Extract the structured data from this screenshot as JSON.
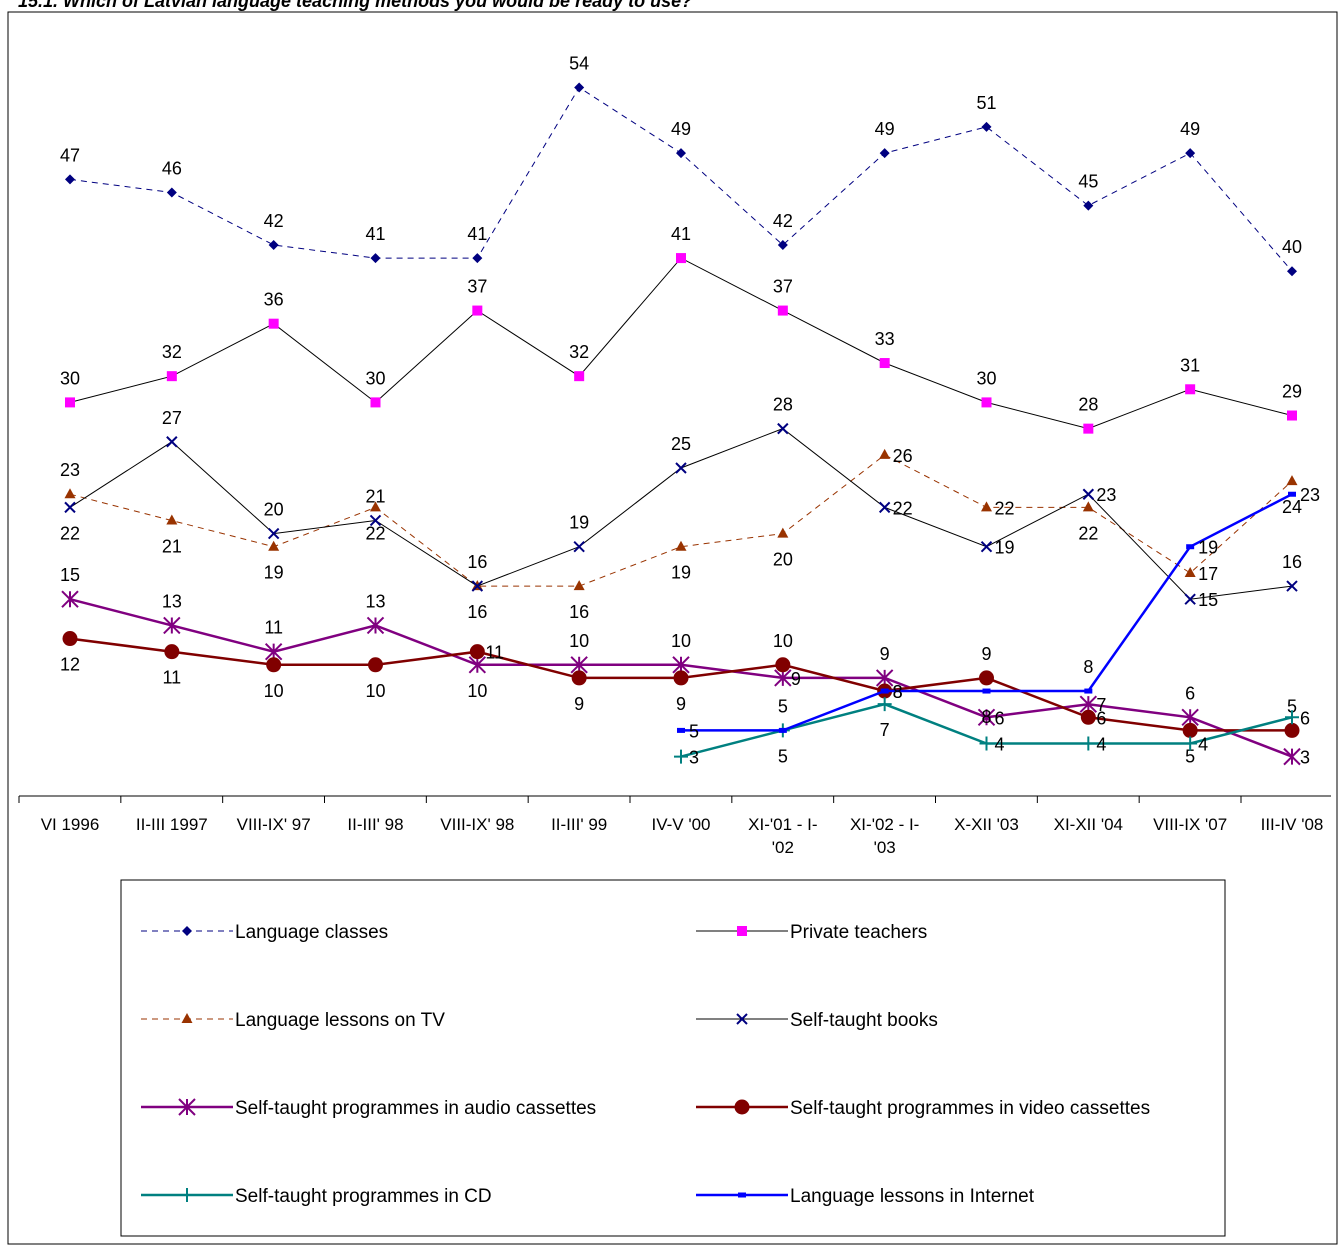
{
  "title": "15.1. Which of Latvian language teaching methods you would be ready to use?",
  "chart_data": {
    "type": "line",
    "title": "15.1. Which of Latvian language teaching methods you would be ready to use?",
    "categories": [
      [
        "VI 1996"
      ],
      [
        "II-III 1997"
      ],
      [
        "VIII-IX' 97"
      ],
      [
        "II-III' 98"
      ],
      [
        "VIII-IX' 98"
      ],
      [
        "II-III' 99"
      ],
      [
        "IV-V '00"
      ],
      [
        "XI-'01 - I-",
        "'02"
      ],
      [
        "XI-'02 - I-",
        "'03"
      ],
      [
        "X-XII '03"
      ],
      [
        "XI-XII '04"
      ],
      [
        "VIII-IX '07"
      ],
      [
        "III-IV '08"
      ]
    ],
    "ylim": [
      0,
      60
    ],
    "grid": false,
    "legend_position": "bottom",
    "series": [
      {
        "name": "Language classes",
        "color": "#000080",
        "marker": "diamond",
        "dash": true,
        "line_color": "#000080",
        "values": [
          47,
          46,
          42,
          41,
          41,
          54,
          49,
          42,
          49,
          51,
          45,
          49,
          40
        ],
        "label_pos": [
          "a",
          "a",
          "a",
          "a",
          "a",
          "a",
          "a",
          "a",
          "a",
          "a",
          "a",
          "a",
          "a"
        ]
      },
      {
        "name": "Private teachers",
        "color": "#ff00ff",
        "marker": "square",
        "dash": false,
        "line_color": "#000000",
        "values": [
          30,
          32,
          36,
          30,
          37,
          32,
          41,
          37,
          33,
          30,
          28,
          31,
          29
        ],
        "label_pos": [
          "a",
          "a",
          "a",
          "a",
          "a",
          "a",
          "a",
          "a",
          "a",
          "a",
          "a",
          "a",
          "a"
        ]
      },
      {
        "name": "Language lessons on TV",
        "color": "#993300",
        "marker": "triangle",
        "dash": true,
        "line_color": "#993300",
        "values": [
          23,
          21,
          19,
          22,
          16,
          16,
          19,
          20,
          26,
          22,
          22,
          17,
          24
        ],
        "label_pos": [
          "a",
          "b",
          "b",
          "b",
          "b",
          "b",
          "b",
          "b",
          "r",
          "r",
          "b",
          "r",
          "b"
        ]
      },
      {
        "name": "Self-taught books",
        "color": "#000080",
        "marker": "x",
        "dash": false,
        "line_color": "#000000",
        "values": [
          22,
          27,
          20,
          21,
          16,
          19,
          25,
          28,
          22,
          19,
          23,
          15,
          16
        ],
        "label_pos": [
          "b",
          "a",
          "a",
          "a",
          "a",
          "a",
          "a",
          "a",
          "r",
          "r",
          "r",
          "r",
          "a"
        ]
      },
      {
        "name": "Self-taught programmes in audio cassettes",
        "color": "#800080",
        "marker": "star",
        "dash": false,
        "line_color": "#800080",
        "values": [
          15,
          13,
          11,
          13,
          10,
          10,
          10,
          9,
          9,
          6,
          7,
          6,
          3
        ],
        "label_pos": [
          "a",
          "a",
          "a",
          "a",
          "b",
          "a",
          "a",
          "r",
          "a",
          "r",
          "r",
          "a",
          "r"
        ]
      },
      {
        "name": "Self-taught programmes in video cassettes",
        "color": "#800000",
        "marker": "circle",
        "dash": false,
        "line_color": "#800000",
        "values": [
          12,
          11,
          10,
          10,
          11,
          9,
          9,
          10,
          8,
          9,
          6,
          5,
          5
        ],
        "label_pos": [
          "b",
          "b",
          "b",
          "b",
          "r",
          "b",
          "b",
          "a",
          "r",
          "a",
          "r",
          "b",
          "a"
        ]
      },
      {
        "name": "Self-taught programmes in CD",
        "color": "#008080",
        "marker": "plus",
        "dash": false,
        "line_color": "#008080",
        "values": [
          null,
          null,
          null,
          null,
          null,
          null,
          3,
          5,
          7,
          4,
          4,
          4,
          6
        ],
        "label_pos": [
          "",
          "",
          "",
          "",
          "",
          "",
          "r",
          "a",
          "b",
          "r",
          "r",
          "r",
          "r"
        ]
      },
      {
        "name": "Language lessons in Internet",
        "color": "#0000ff",
        "marker": "dash",
        "dash": false,
        "line_color": "#0000ff",
        "values": [
          null,
          null,
          null,
          null,
          null,
          null,
          5,
          5,
          8,
          8,
          8,
          19,
          23
        ],
        "label_pos": [
          "",
          "",
          "",
          "",
          "",
          "",
          "r",
          "b",
          "r",
          "b",
          "a",
          "r",
          "r"
        ]
      }
    ]
  }
}
